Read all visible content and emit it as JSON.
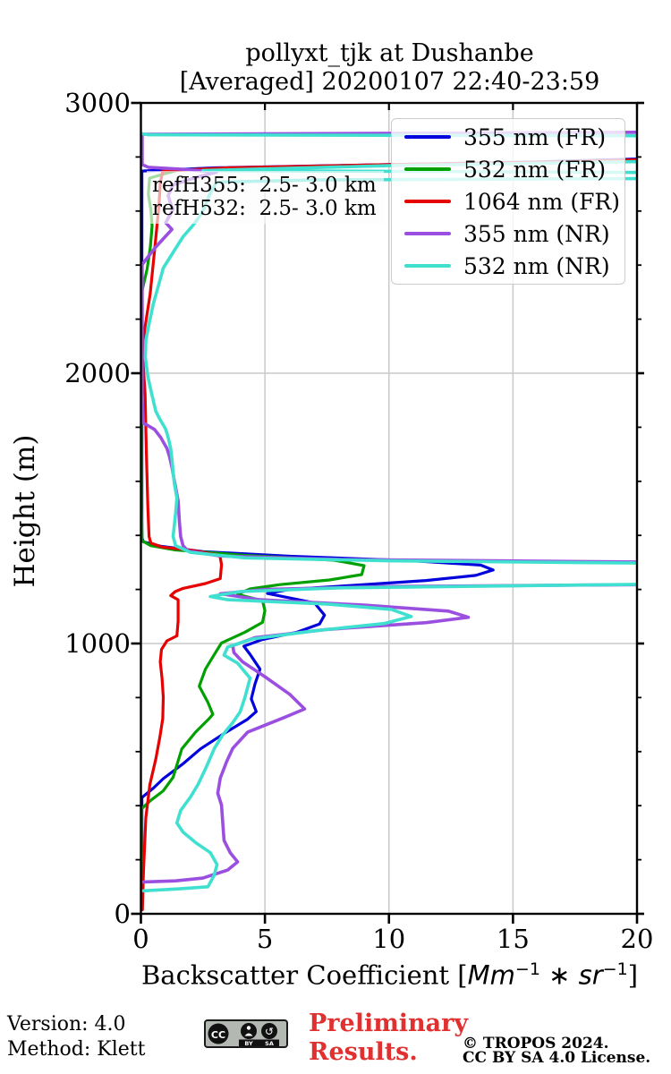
{
  "title": {
    "line1": "pollyxt_tjk at Dushanbe",
    "line2": "[Averaged] 20200107 22:40-23:59"
  },
  "annotation": {
    "line1": "refH355:  2.5- 3.0 km",
    "line2": "refH532:  2.5- 3.0 km"
  },
  "legend": [
    {
      "label": "355 nm (FR)",
      "color": "#0202dd"
    },
    {
      "label": "532 nm (FR)",
      "color": "#00a000"
    },
    {
      "label": "1064 nm (FR)",
      "color": "#e60000"
    },
    {
      "label": "355 nm (NR)",
      "color": "#9b4fe0"
    },
    {
      "label": "532 nm (NR)",
      "color": "#40e0d0"
    }
  ],
  "footer": {
    "version": "Version: 4.0",
    "method": "Method: Klett",
    "preliminary_line1": "Preliminary",
    "preliminary_line2": "Results.",
    "preliminary_color": "#e03030",
    "copyright_line1": "© TROPOS 2024.",
    "copyright_line2": "CC BY SA 4.0 License.",
    "badge": {
      "cc": "CC",
      "by": "BY",
      "sa": "SA"
    }
  },
  "chart_data": {
    "type": "line",
    "orientation": "vertical-profile",
    "title": "pollyxt_tjk at Dushanbe [Averaged] 20200107 22:40-23:59",
    "xlabel_prefix": "Backscatter Coefficient [",
    "xlabel_unit1": "Mm",
    "xlabel_sup1": "−1",
    "xlabel_mid": " ∗ ",
    "xlabel_unit2": "sr",
    "xlabel_sup2": "−1",
    "xlabel_suffix": "]",
    "ylabel": "Height (m)",
    "xlim": [
      0,
      20
    ],
    "ylim": [
      0,
      3000
    ],
    "x_ticks": [
      0,
      5,
      10,
      15,
      20
    ],
    "x_tick_labels": [
      "0",
      "5",
      "10",
      "15",
      "20"
    ],
    "y_ticks": [
      0,
      1000,
      2000,
      3000
    ],
    "y_tick_labels": [
      "0",
      "1000",
      "2000",
      "3000"
    ],
    "y_minor_step": 200,
    "grid": true,
    "grid_x": [
      5,
      10,
      15
    ],
    "grid_y": [
      1000,
      2000
    ],
    "grid_color": "#c9c9c9",
    "legend_position": "upper right",
    "offscale_note": "value 22 encodes profile exceeding xlim (cloud spikes drawn exiting the right frame; near-horizontal lines at ~1220 m, ~1300 m, ~2720 m, ~2760-2800 m, ~2885 m)",
    "series": [
      {
        "name": "355 nm (FR)",
        "color": "#0202dd",
        "width": 3.2,
        "points": [
          [
            0.04,
            15
          ],
          [
            0.04,
            430
          ],
          [
            0.5,
            465
          ],
          [
            0.9,
            500
          ],
          [
            1.7,
            555
          ],
          [
            2.4,
            610
          ],
          [
            3.4,
            670
          ],
          [
            4.3,
            720
          ],
          [
            4.65,
            748
          ],
          [
            4.45,
            795
          ],
          [
            4.6,
            850
          ],
          [
            4.8,
            905
          ],
          [
            4.4,
            960
          ],
          [
            4.15,
            990
          ],
          [
            4.9,
            1015
          ],
          [
            6.3,
            1042
          ],
          [
            7.2,
            1072
          ],
          [
            7.4,
            1105
          ],
          [
            7.0,
            1150
          ],
          [
            5.1,
            1185
          ],
          [
            6.0,
            1200
          ],
          [
            8.5,
            1215
          ],
          [
            11.5,
            1233
          ],
          [
            13.5,
            1252
          ],
          [
            14.2,
            1272
          ],
          [
            13.7,
            1290
          ],
          [
            10.8,
            1307
          ],
          [
            6.0,
            1323
          ],
          [
            2.5,
            1340
          ],
          [
            0.8,
            1360
          ],
          [
            0.1,
            1376
          ],
          [
            0.04,
            1392
          ],
          [
            0.04,
            2748
          ],
          [
            3.0,
            2760
          ],
          [
            10.0,
            2772
          ],
          [
            16.0,
            2782
          ],
          [
            22,
            2798
          ]
        ]
      },
      {
        "name": "532 nm (FR)",
        "color": "#00a000",
        "width": 3.2,
        "points": [
          [
            0.02,
            15
          ],
          [
            0.02,
            388
          ],
          [
            0.4,
            420
          ],
          [
            0.9,
            455
          ],
          [
            1.3,
            505
          ],
          [
            1.65,
            610
          ],
          [
            2.2,
            672
          ],
          [
            2.75,
            722
          ],
          [
            2.9,
            738
          ],
          [
            2.7,
            782
          ],
          [
            2.35,
            842
          ],
          [
            2.6,
            905
          ],
          [
            2.95,
            958
          ],
          [
            3.25,
            1002
          ],
          [
            4.2,
            1042
          ],
          [
            4.9,
            1078
          ],
          [
            5.0,
            1122
          ],
          [
            4.9,
            1158
          ],
          [
            3.9,
            1182
          ],
          [
            4.4,
            1202
          ],
          [
            5.6,
            1218
          ],
          [
            7.6,
            1235
          ],
          [
            8.9,
            1255
          ],
          [
            9.0,
            1288
          ],
          [
            7.8,
            1308
          ],
          [
            4.2,
            1326
          ],
          [
            1.4,
            1346
          ],
          [
            0.4,
            1362
          ],
          [
            0.05,
            1380
          ],
          [
            0.02,
            1500
          ],
          [
            0.02,
            2295
          ],
          [
            0.25,
            2385
          ],
          [
            0.38,
            2465
          ],
          [
            0.45,
            2545
          ],
          [
            0.4,
            2605
          ],
          [
            0.3,
            2662
          ],
          [
            0.35,
            2722
          ],
          [
            1.5,
            2752
          ],
          [
            6.0,
            2764
          ],
          [
            14.0,
            2776
          ],
          [
            22,
            2790
          ]
        ]
      },
      {
        "name": "1064 nm (FR)",
        "color": "#e60000",
        "width": 3.2,
        "points": [
          [
            0.06,
            15
          ],
          [
            0.1,
            150
          ],
          [
            0.2,
            355
          ],
          [
            0.36,
            478
          ],
          [
            0.6,
            572
          ],
          [
            0.76,
            652
          ],
          [
            0.88,
            722
          ],
          [
            0.9,
            802
          ],
          [
            0.85,
            872
          ],
          [
            0.78,
            932
          ],
          [
            0.83,
            978
          ],
          [
            1.05,
            1010
          ],
          [
            1.45,
            1028
          ],
          [
            1.5,
            1082
          ],
          [
            1.5,
            1162
          ],
          [
            1.2,
            1177
          ],
          [
            1.38,
            1192
          ],
          [
            1.7,
            1204
          ],
          [
            2.6,
            1222
          ],
          [
            3.2,
            1240
          ],
          [
            3.25,
            1292
          ],
          [
            3.18,
            1326
          ],
          [
            2.1,
            1344
          ],
          [
            0.85,
            1357
          ],
          [
            0.4,
            1372
          ],
          [
            0.33,
            1396
          ],
          [
            0.28,
            1500
          ],
          [
            0.22,
            1705
          ],
          [
            0.17,
            1922
          ],
          [
            0.08,
            2052
          ],
          [
            0.15,
            2162
          ],
          [
            0.37,
            2292
          ],
          [
            0.55,
            2452
          ],
          [
            0.73,
            2622
          ],
          [
            0.78,
            2702
          ],
          [
            0.88,
            2748
          ],
          [
            3.5,
            2760
          ],
          [
            10.0,
            2772
          ],
          [
            17.0,
            2782
          ],
          [
            22,
            2795
          ]
        ]
      },
      {
        "name": "355 nm (NR)",
        "color": "#9b4fe0",
        "width": 3.6,
        "points": [
          [
            0.1,
            118
          ],
          [
            1.4,
            122
          ],
          [
            2.5,
            132
          ],
          [
            3.5,
            162
          ],
          [
            3.9,
            192
          ],
          [
            3.6,
            226
          ],
          [
            3.35,
            272
          ],
          [
            3.3,
            336
          ],
          [
            3.25,
            402
          ],
          [
            3.1,
            446
          ],
          [
            3.2,
            502
          ],
          [
            3.45,
            562
          ],
          [
            3.7,
            612
          ],
          [
            4.3,
            672
          ],
          [
            5.8,
            727
          ],
          [
            6.6,
            758
          ],
          [
            6.0,
            812
          ],
          [
            5.0,
            877
          ],
          [
            4.1,
            932
          ],
          [
            3.75,
            966
          ],
          [
            3.7,
            992
          ],
          [
            4.6,
            1022
          ],
          [
            7.5,
            1052
          ],
          [
            11.5,
            1077
          ],
          [
            13.2,
            1097
          ],
          [
            12.4,
            1120
          ],
          [
            9.0,
            1142
          ],
          [
            4.8,
            1162
          ],
          [
            3.2,
            1184
          ],
          [
            5.0,
            1200
          ],
          [
            10.0,
            1211
          ],
          [
            22,
            1219
          ],
          [
            22,
            1300
          ],
          [
            8.0,
            1311
          ],
          [
            3.2,
            1324
          ],
          [
            1.9,
            1342
          ],
          [
            1.7,
            1362
          ],
          [
            1.6,
            1396
          ],
          [
            1.55,
            1452
          ],
          [
            1.5,
            1528
          ],
          [
            1.35,
            1602
          ],
          [
            1.25,
            1652
          ],
          [
            1.15,
            1692
          ],
          [
            1.05,
            1722
          ],
          [
            0.8,
            1762
          ],
          [
            0.55,
            1792
          ],
          [
            0.1,
            1816
          ],
          [
            0.05,
            1902
          ],
          [
            0.05,
            2402
          ],
          [
            0.3,
            2432
          ],
          [
            0.6,
            2467
          ],
          [
            0.95,
            2502
          ],
          [
            1.25,
            2532
          ],
          [
            1.0,
            2557
          ],
          [
            1.15,
            2582
          ],
          [
            1.3,
            2607
          ],
          [
            1.2,
            2627
          ],
          [
            1.1,
            2657
          ],
          [
            1.3,
            2697
          ],
          [
            2.2,
            2724
          ],
          [
            3.05,
            2744
          ],
          [
            1.8,
            2754
          ],
          [
            0.3,
            2762
          ],
          [
            0.05,
            2772
          ],
          [
            0.05,
            2884
          ],
          [
            22,
            2892
          ]
        ]
      },
      {
        "name": "532 nm (NR)",
        "color": "#40e0d0",
        "width": 3.6,
        "points": [
          [
            0.1,
            85
          ],
          [
            1.5,
            92
          ],
          [
            2.7,
            100
          ],
          [
            2.95,
            142
          ],
          [
            3.07,
            182
          ],
          [
            2.8,
            226
          ],
          [
            2.2,
            264
          ],
          [
            1.7,
            302
          ],
          [
            1.45,
            336
          ],
          [
            1.6,
            382
          ],
          [
            2.0,
            432
          ],
          [
            2.3,
            478
          ],
          [
            2.65,
            546
          ],
          [
            2.96,
            612
          ],
          [
            3.3,
            662
          ],
          [
            3.7,
            707
          ],
          [
            4.0,
            747
          ],
          [
            4.2,
            802
          ],
          [
            4.4,
            872
          ],
          [
            3.9,
            927
          ],
          [
            3.35,
            957
          ],
          [
            3.5,
            987
          ],
          [
            4.5,
            1017
          ],
          [
            7.0,
            1047
          ],
          [
            9.8,
            1074
          ],
          [
            10.9,
            1100
          ],
          [
            10.1,
            1126
          ],
          [
            7.5,
            1146
          ],
          [
            3.5,
            1162
          ],
          [
            2.8,
            1174
          ],
          [
            4.0,
            1192
          ],
          [
            8.0,
            1206
          ],
          [
            22,
            1221
          ],
          [
            22,
            1296
          ],
          [
            10.0,
            1306
          ],
          [
            4.2,
            1317
          ],
          [
            2.0,
            1337
          ],
          [
            1.4,
            1362
          ],
          [
            1.3,
            1396
          ],
          [
            1.4,
            1482
          ],
          [
            1.45,
            1538
          ],
          [
            1.35,
            1592
          ],
          [
            1.3,
            1634
          ],
          [
            1.25,
            1682
          ],
          [
            1.2,
            1721
          ],
          [
            1.1,
            1762
          ],
          [
            1.0,
            1793
          ],
          [
            0.75,
            1832
          ],
          [
            0.6,
            1860
          ],
          [
            0.43,
            1926
          ],
          [
            0.28,
            1987
          ],
          [
            0.18,
            2057
          ],
          [
            0.2,
            2122
          ],
          [
            0.35,
            2192
          ],
          [
            0.5,
            2257
          ],
          [
            0.7,
            2322
          ],
          [
            0.9,
            2389
          ],
          [
            1.3,
            2447
          ],
          [
            1.7,
            2505
          ],
          [
            2.1,
            2547
          ],
          [
            2.3,
            2572
          ],
          [
            2.5,
            2602
          ],
          [
            2.6,
            2622
          ],
          [
            2.75,
            2657
          ],
          [
            2.9,
            2684
          ],
          [
            3.05,
            2707
          ],
          [
            7.0,
            2715
          ],
          [
            22,
            2721
          ],
          [
            22,
            2742
          ],
          [
            2.5,
            2750
          ],
          [
            10.0,
            2768
          ],
          [
            22,
            2786
          ],
          [
            22,
            2878
          ],
          [
            0.3,
            2882
          ],
          [
            0.05,
            2886
          ]
        ]
      }
    ]
  }
}
